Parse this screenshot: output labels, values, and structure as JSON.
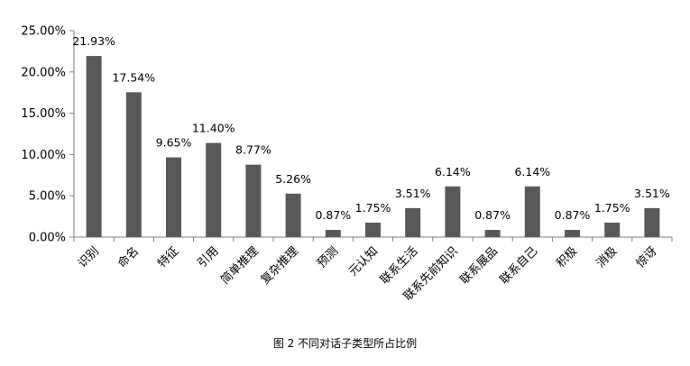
{
  "chart_data": {
    "type": "bar",
    "categories": [
      "识别",
      "命名",
      "特征",
      "引用",
      "简单推理",
      "复杂推理",
      "预测",
      "元认知",
      "联系生活",
      "联系先前知识",
      "联系展品",
      "联系自己",
      "积极",
      "消极",
      "惊讶"
    ],
    "values": [
      21.93,
      17.54,
      9.65,
      11.4,
      8.77,
      5.26,
      0.87,
      1.75,
      3.51,
      6.14,
      0.87,
      6.14,
      0.87,
      1.75,
      3.51
    ],
    "value_labels": [
      "21.93%",
      "17.54%",
      "9.65%",
      "11.40%",
      "8.77%",
      "5.26%",
      "0.87%",
      "1.75%",
      "3.51%",
      "6.14%",
      "0.87%",
      "6.14%",
      "0.87%",
      "1.75%",
      "3.51%"
    ],
    "yticks": [
      "0.00%",
      "5.00%",
      "10.00%",
      "15.00%",
      "20.00%",
      "25.00%"
    ],
    "ylim": [
      0,
      25
    ],
    "grid": false,
    "bar_color": "#595959",
    "axis_color": "#7f7f7f",
    "title": "",
    "xlabel": "",
    "ylabel": ""
  },
  "caption": "图 2   不同对话子类型所占比例"
}
